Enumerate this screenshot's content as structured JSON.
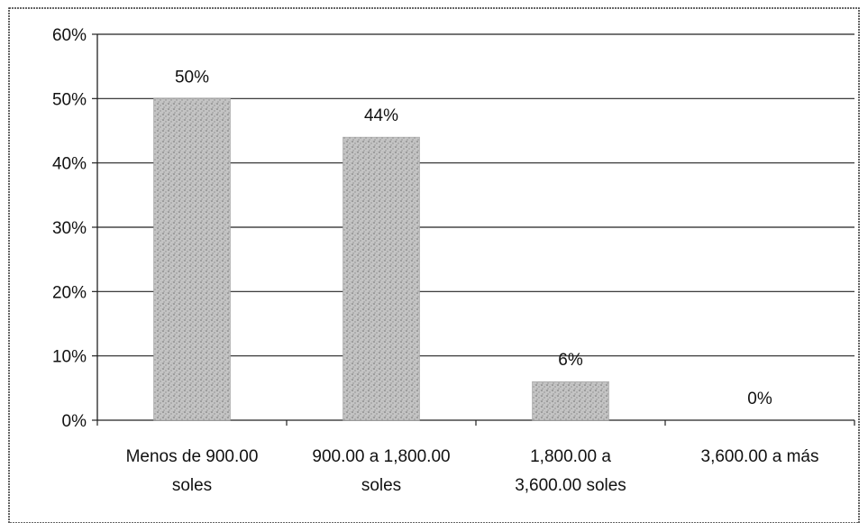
{
  "chart_data": {
    "type": "bar",
    "categories": [
      [
        "Menos de  900.00",
        "soles"
      ],
      [
        "900.00 a 1,800.00",
        "soles"
      ],
      [
        "1,800.00 a",
        "3,600.00 soles"
      ],
      [
        "3,600.00 a más"
      ]
    ],
    "values": [
      50,
      44,
      6,
      0
    ],
    "data_labels": [
      "50%",
      "44%",
      "6%",
      "0%"
    ],
    "ylim": [
      0,
      60
    ],
    "yticks": [
      0,
      10,
      20,
      30,
      40,
      50,
      60
    ],
    "ytick_labels": [
      "0%",
      "10%",
      "20%",
      "30%",
      "40%",
      "50%",
      "60%"
    ],
    "title": "",
    "xlabel": "",
    "ylabel": "",
    "grid": true,
    "legend": "none",
    "bar_color": "#b0b0b0",
    "bar_pattern": "stippled-gray",
    "gridline_color": "#222222"
  }
}
